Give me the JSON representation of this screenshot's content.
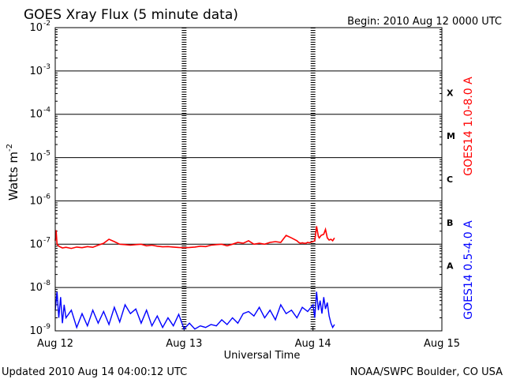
{
  "header": {
    "title": "GOES Xray Flux (5 minute data)",
    "begin": "Begin:  2010 Aug 12 0000 UTC"
  },
  "footer": {
    "updated": "Updated 2010 Aug 14 04:00:12 UTC",
    "source": "NOAA/SWPC Boulder, CO USA"
  },
  "colors": {
    "long_channel": "#ff0000",
    "short_channel": "#0000ff",
    "axes": "#000000",
    "background": "#ffffff"
  },
  "chart_data": {
    "type": "line",
    "title": "GOES Xray Flux (5 minute data)",
    "xlabel": "Universal Time",
    "ylabel": "Watts m-2",
    "ylabel_main": "Watts m",
    "ylabel_exp": "-2",
    "yscale": "log",
    "ylim": [
      1e-09,
      0.01
    ],
    "xlim": [
      "2010-08-12T00:00",
      "2010-08-15T00:00"
    ],
    "x_ticks": [
      "Aug 12",
      "Aug 13",
      "Aug 14",
      "Aug 15"
    ],
    "x_tick_dates": [
      "2010-08-12T00:00",
      "2010-08-13T00:00",
      "2010-08-14T00:00",
      "2010-08-15T00:00"
    ],
    "y_ticks": [
      {
        "value": 0.01,
        "base": "10",
        "exp": "-2"
      },
      {
        "value": 0.001,
        "base": "10",
        "exp": "-3"
      },
      {
        "value": 0.0001,
        "base": "10",
        "exp": "-4"
      },
      {
        "value": 1e-05,
        "base": "10",
        "exp": "-5"
      },
      {
        "value": 1e-06,
        "base": "10",
        "exp": "-6"
      },
      {
        "value": 1e-07,
        "base": "10",
        "exp": "-7"
      },
      {
        "value": 1e-08,
        "base": "10",
        "exp": "-8"
      },
      {
        "value": 1e-09,
        "base": "10",
        "exp": "-9"
      }
    ],
    "grid": "horizontal",
    "flare_classes": [
      {
        "label": "X",
        "low": 0.0001,
        "high": 0.001
      },
      {
        "label": "M",
        "low": 1e-05,
        "high": 0.0001
      },
      {
        "label": "C",
        "low": 1e-06,
        "high": 1e-05
      },
      {
        "label": "B",
        "low": 1e-07,
        "high": 1e-06
      },
      {
        "label": "A",
        "low": 1e-08,
        "high": 1e-07
      }
    ],
    "series": [
      {
        "name": "GOES14 1.0-8.0 A",
        "color": "#ff0000",
        "x": [
          "2010-08-12T00:00",
          "2010-08-12T00:10",
          "2010-08-12T00:20",
          "2010-08-12T00:40",
          "2010-08-12T01:20",
          "2010-08-12T02:00",
          "2010-08-12T03:00",
          "2010-08-12T04:00",
          "2010-08-12T05:00",
          "2010-08-12T06:00",
          "2010-08-12T07:00",
          "2010-08-12T08:00",
          "2010-08-12T09:00",
          "2010-08-12T10:00",
          "2010-08-12T11:00",
          "2010-08-12T12:00",
          "2010-08-12T13:00",
          "2010-08-12T14:00",
          "2010-08-12T15:00",
          "2010-08-12T16:00",
          "2010-08-12T17:00",
          "2010-08-12T18:00",
          "2010-08-12T19:00",
          "2010-08-12T20:00",
          "2010-08-12T21:00",
          "2010-08-12T22:00",
          "2010-08-12T23:00",
          "2010-08-13T00:00",
          "2010-08-13T01:00",
          "2010-08-13T02:00",
          "2010-08-13T03:00",
          "2010-08-13T04:00",
          "2010-08-13T05:00",
          "2010-08-13T06:00",
          "2010-08-13T07:00",
          "2010-08-13T08:00",
          "2010-08-13T09:00",
          "2010-08-13T10:00",
          "2010-08-13T11:00",
          "2010-08-13T12:00",
          "2010-08-13T13:00",
          "2010-08-13T14:00",
          "2010-08-13T15:00",
          "2010-08-13T16:00",
          "2010-08-13T17:00",
          "2010-08-13T18:00",
          "2010-08-13T19:00",
          "2010-08-13T20:00",
          "2010-08-13T21:00",
          "2010-08-13T21:20",
          "2010-08-13T21:40",
          "2010-08-13T22:00",
          "2010-08-13T22:20",
          "2010-08-13T22:40",
          "2010-08-13T23:00",
          "2010-08-13T23:20",
          "2010-08-13T23:40",
          "2010-08-14T00:00",
          "2010-08-14T00:20",
          "2010-08-14T00:40",
          "2010-08-14T01:00",
          "2010-08-14T01:10",
          "2010-08-14T01:30",
          "2010-08-14T02:00",
          "2010-08-14T02:20",
          "2010-08-14T02:40",
          "2010-08-14T03:00",
          "2010-08-14T03:20",
          "2010-08-14T03:40",
          "2010-08-14T04:00"
        ],
        "y": [
          1.2e-07,
          2.1e-07,
          1e-07,
          9e-08,
          8.2e-08,
          8.5e-08,
          8e-08,
          8.6e-08,
          8.3e-08,
          8.8e-08,
          8.5e-08,
          9.5e-08,
          1.05e-07,
          1.3e-07,
          1.15e-07,
          1e-07,
          9.8e-08,
          9.5e-08,
          9.8e-08,
          1e-07,
          9.2e-08,
          9.5e-08,
          9e-08,
          8.7e-08,
          8.8e-08,
          8.6e-08,
          8.4e-08,
          8.3e-08,
          8.4e-08,
          8.6e-08,
          9e-08,
          8.8e-08,
          9.5e-08,
          9.8e-08,
          1e-07,
          9.2e-08,
          1e-07,
          1.1e-07,
          1.05e-07,
          1.2e-07,
          1e-07,
          1.05e-07,
          1e-07,
          1.1e-07,
          1.15e-07,
          1.1e-07,
          1.6e-07,
          1.4e-07,
          1.2e-07,
          1.1e-07,
          1.05e-07,
          1.08e-07,
          1.05e-07,
          1.05e-07,
          1.1e-07,
          1.08e-07,
          1.12e-07,
          1.15e-07,
          1.2e-07,
          2.6e-07,
          1.5e-07,
          1.4e-07,
          1.6e-07,
          1.7e-07,
          2.2e-07,
          1.4e-07,
          1.25e-07,
          1.3e-07,
          1.2e-07,
          1.4e-07
        ]
      },
      {
        "name": "GOES14 0.5-4.0 A",
        "color": "#0000ff",
        "x": [
          "2010-08-12T00:00",
          "2010-08-12T00:20",
          "2010-08-12T00:40",
          "2010-08-12T01:00",
          "2010-08-12T01:20",
          "2010-08-12T01:40",
          "2010-08-12T02:00",
          "2010-08-12T03:00",
          "2010-08-12T04:00",
          "2010-08-12T05:00",
          "2010-08-12T06:00",
          "2010-08-12T07:00",
          "2010-08-12T08:00",
          "2010-08-12T09:00",
          "2010-08-12T10:00",
          "2010-08-12T11:00",
          "2010-08-12T12:00",
          "2010-08-12T13:00",
          "2010-08-12T14:00",
          "2010-08-12T15:00",
          "2010-08-12T16:00",
          "2010-08-12T17:00",
          "2010-08-12T18:00",
          "2010-08-12T19:00",
          "2010-08-12T20:00",
          "2010-08-12T21:00",
          "2010-08-12T22:00",
          "2010-08-12T23:00",
          "2010-08-13T00:00",
          "2010-08-13T01:00",
          "2010-08-13T02:00",
          "2010-08-13T03:00",
          "2010-08-13T04:00",
          "2010-08-13T05:00",
          "2010-08-13T06:00",
          "2010-08-13T07:00",
          "2010-08-13T08:00",
          "2010-08-13T09:00",
          "2010-08-13T10:00",
          "2010-08-13T11:00",
          "2010-08-13T12:00",
          "2010-08-13T13:00",
          "2010-08-13T14:00",
          "2010-08-13T15:00",
          "2010-08-13T16:00",
          "2010-08-13T17:00",
          "2010-08-13T18:00",
          "2010-08-13T19:00",
          "2010-08-13T20:00",
          "2010-08-13T21:00",
          "2010-08-13T22:00",
          "2010-08-13T23:00",
          "2010-08-14T00:00",
          "2010-08-14T00:20",
          "2010-08-14T00:40",
          "2010-08-14T01:00",
          "2010-08-14T01:20",
          "2010-08-14T01:40",
          "2010-08-14T02:00",
          "2010-08-14T02:20",
          "2010-08-14T02:40",
          "2010-08-14T03:00",
          "2010-08-14T03:20",
          "2010-08-14T03:40",
          "2010-08-14T04:00"
        ],
        "y": [
          3e-09,
          8e-09,
          2e-09,
          6e-09,
          1.5e-09,
          4e-09,
          2e-09,
          3e-09,
          1.2e-09,
          2.5e-09,
          1.3e-09,
          3e-09,
          1.5e-09,
          2.8e-09,
          1.4e-09,
          3.5e-09,
          1.6e-09,
          4e-09,
          2.5e-09,
          3.2e-09,
          1.5e-09,
          3e-09,
          1.3e-09,
          2.2e-09,
          1.2e-09,
          2e-09,
          1.3e-09,
          2.4e-09,
          1.1e-09,
          1.5e-09,
          1.1e-09,
          1.3e-09,
          1.2e-09,
          1.4e-09,
          1.3e-09,
          1.8e-09,
          1.4e-09,
          2e-09,
          1.5e-09,
          2.5e-09,
          2.8e-09,
          2.2e-09,
          3.5e-09,
          2e-09,
          3e-09,
          1.8e-09,
          4e-09,
          2.5e-09,
          3e-09,
          2e-09,
          3.5e-09,
          2.8e-09,
          4e-09,
          2e-09,
          8e-09,
          3e-09,
          5e-09,
          2.5e-09,
          6e-09,
          3.2e-09,
          4.5e-09,
          2.2e-09,
          1.5e-09,
          1.2e-09,
          1.4e-09
        ]
      }
    ]
  }
}
